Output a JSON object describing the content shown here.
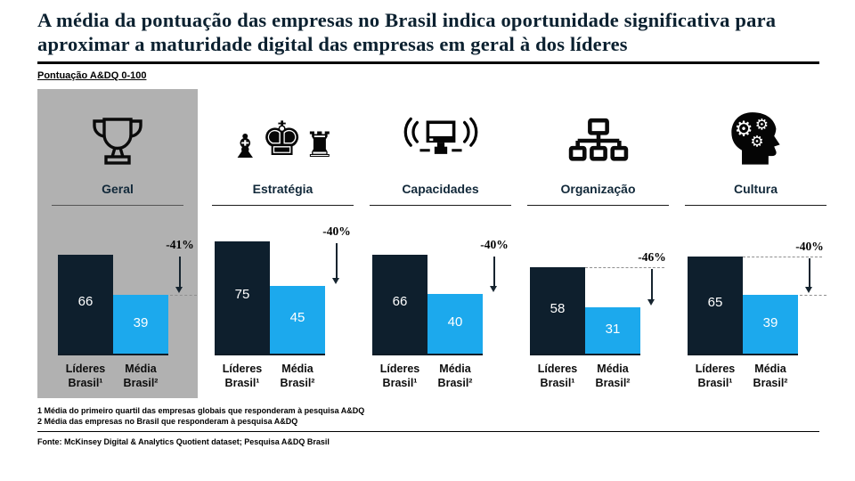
{
  "page": {
    "title": "A média da pontuação das empresas no Brasil indica oportunidade significativa para aproximar a maturidade digital das empresas em geral à dos líderes",
    "subtitle": "Pontuação A&DQ 0-100"
  },
  "chart_data": {
    "type": "bar",
    "title": "Pontuação A&DQ 0-100",
    "ylim": [
      0,
      100
    ],
    "categories": [
      "Geral",
      "Estratégia",
      "Capacidades",
      "Organização",
      "Cultura"
    ],
    "category_icons": [
      "trophy-icon",
      "chess-pieces-icon",
      "connected-computer-icon",
      "org-chart-icon",
      "head-with-gears-icon"
    ],
    "series": [
      {
        "name": "Líderes Brasil¹",
        "color": "#0e1f2d",
        "values": [
          66,
          75,
          66,
          58,
          65
        ]
      },
      {
        "name": "Média Brasil²",
        "color": "#1ca9ed",
        "values": [
          39,
          45,
          40,
          31,
          39
        ]
      }
    ],
    "bar_labels": {
      "leader": [
        "Líderes",
        "Brasil¹"
      ],
      "media": [
        "Média",
        "Brasil²"
      ]
    },
    "gap_labels": [
      "-41%",
      "-40%",
      "-40%",
      "-46%",
      "-40%"
    ],
    "dash_at_leader_top": [
      false,
      false,
      false,
      true,
      true
    ],
    "dash_at_media_top": [
      true,
      false,
      false,
      false,
      true
    ],
    "highlighted_category": "Geral",
    "legend_position": "below-bars",
    "grid": false
  },
  "colors": {
    "leader_bar": "#0e1f2d",
    "media_bar": "#1ca9ed",
    "highlight_panel": "#b1b1b1",
    "title_text": "#0c2130"
  },
  "footnotes": [
    "1 Média do primeiro quartil das empresas globais que responderam à pesquisa A&DQ",
    "2 Média das empresas no Brasil que responderam à pesquisa A&DQ"
  ],
  "source": "Fonte: McKinsey Digital & Analytics Quotient dataset; Pesquisa A&DQ Brasil"
}
